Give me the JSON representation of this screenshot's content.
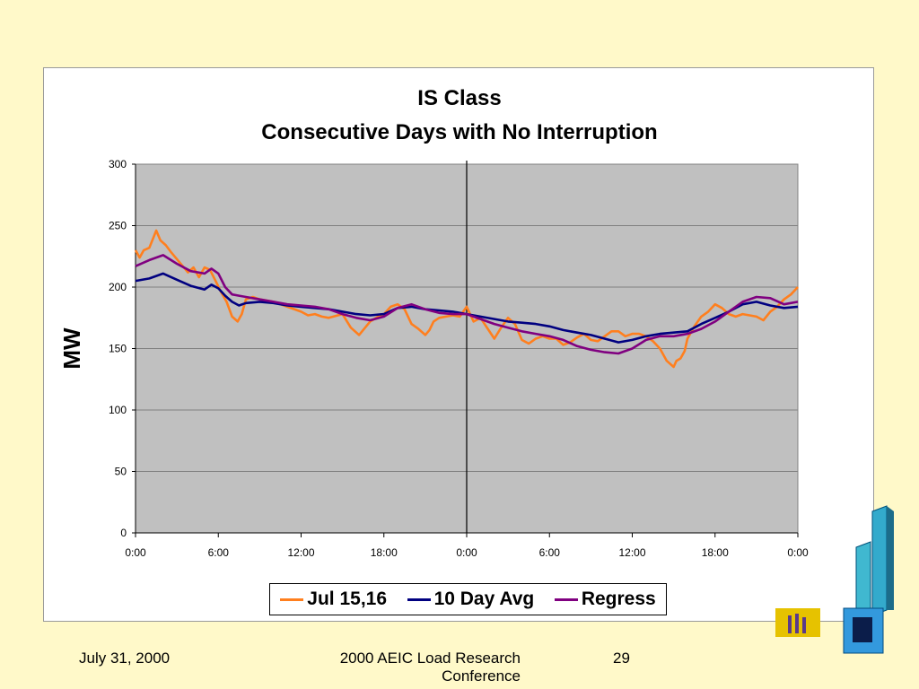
{
  "footer": {
    "date": "July 31, 2000",
    "conference": "2000 AEIC Load Research Conference",
    "page_number": "29"
  },
  "colors": {
    "background": "#FFF9C9",
    "plot_area": "#C0C0C0",
    "jul": "#FF7F1E",
    "avg": "#000080",
    "regress": "#800080"
  },
  "chart_data": {
    "type": "line",
    "title": "IS Class",
    "subtitle": "Consecutive Days with No Interruption",
    "xlabel": "",
    "ylabel": "MW",
    "ylim": [
      0,
      300
    ],
    "yticks": [
      0,
      50,
      100,
      150,
      200,
      250,
      300
    ],
    "xlim": [
      0,
      48
    ],
    "xticks": [
      0,
      6,
      12,
      18,
      24,
      30,
      36,
      42,
      48
    ],
    "xtick_labels": [
      "0:00",
      "6:00",
      "12:00",
      "18:00",
      "0:00",
      "6:00",
      "12:00",
      "18:00",
      "0:00"
    ],
    "x_unit": "hours",
    "grid": "horizontal",
    "vertical_marker": 24,
    "legend": "bottom",
    "series": [
      {
        "name": "Jul 15,16",
        "color": "#FF7F1E",
        "x": [
          0,
          0.3,
          0.6,
          1,
          1.5,
          1.8,
          2.2,
          2.6,
          3.2,
          3.8,
          4.2,
          4.6,
          5,
          5.4,
          5.8,
          6.2,
          6.6,
          7,
          7.4,
          7.7,
          8,
          8.5,
          9,
          10,
          11,
          12,
          12.5,
          13,
          13.5,
          14,
          15,
          15.6,
          16.2,
          17,
          17.6,
          18,
          18.5,
          19,
          19.5,
          20,
          20.5,
          21,
          21.3,
          21.6,
          22,
          22.5,
          23,
          23.5,
          24,
          24.5,
          25,
          26,
          26.5,
          27,
          27.5,
          28,
          28.5,
          29,
          29.5,
          30,
          30.5,
          31,
          31.5,
          32,
          32.5,
          33,
          33.5,
          34,
          34.5,
          35,
          35.5,
          36,
          36.5,
          37,
          37.5,
          38,
          38.5,
          39,
          39.2,
          39.5,
          39.8,
          40,
          40.5,
          41,
          41.5,
          42,
          42.5,
          43,
          43.5,
          44,
          44.5,
          45,
          45.5,
          46,
          46.5,
          47,
          47.5,
          48
        ],
        "values": [
          230,
          224,
          230,
          232,
          246,
          238,
          234,
          228,
          220,
          212,
          216,
          208,
          216,
          214,
          205,
          196,
          188,
          176,
          172,
          178,
          190,
          192,
          190,
          188,
          184,
          180,
          177,
          178,
          176,
          175,
          178,
          167,
          161,
          172,
          176,
          178,
          184,
          186,
          182,
          170,
          166,
          161,
          165,
          172,
          175,
          176,
          177,
          176,
          184,
          172,
          175,
          158,
          167,
          175,
          170,
          157,
          154,
          158,
          160,
          158,
          158,
          153,
          155,
          159,
          162,
          157,
          156,
          160,
          164,
          164,
          160,
          162,
          162,
          160,
          156,
          150,
          140,
          135,
          140,
          142,
          148,
          158,
          168,
          176,
          180,
          186,
          183,
          178,
          176,
          178,
          177,
          176,
          173,
          180,
          184,
          190,
          194,
          200
        ]
      },
      {
        "name": "10 Day Avg",
        "color": "#000080",
        "x": [
          0,
          1,
          2,
          3,
          4,
          5,
          5.5,
          6,
          6.5,
          7,
          7.5,
          8,
          9,
          10,
          11,
          12,
          13,
          14,
          15,
          16,
          17,
          18,
          19,
          20,
          21,
          22,
          23,
          24,
          25,
          26,
          27,
          28,
          29,
          30,
          31,
          32,
          33,
          34,
          35,
          36,
          37,
          38,
          39,
          40,
          41,
          42,
          43,
          44,
          45,
          46,
          47,
          48
        ],
        "values": [
          205,
          207,
          211,
          206,
          201,
          198,
          202,
          199,
          193,
          188,
          185,
          187,
          188,
          187,
          185,
          184,
          183,
          182,
          180,
          178,
          177,
          178,
          183,
          184,
          182,
          181,
          180,
          178,
          176,
          174,
          172,
          171,
          170,
          168,
          165,
          163,
          161,
          158,
          155,
          157,
          160,
          162,
          163,
          164,
          170,
          175,
          180,
          186,
          188,
          185,
          183,
          184
        ]
      },
      {
        "name": "Regress",
        "color": "#800080",
        "x": [
          0,
          1,
          2,
          3,
          4,
          5,
          5.5,
          6,
          6.5,
          7,
          7.5,
          8,
          9,
          10,
          11,
          12,
          13,
          14,
          15,
          16,
          17,
          18,
          19,
          20,
          21,
          22,
          23,
          24,
          25,
          26,
          27,
          28,
          29,
          30,
          31,
          32,
          33,
          34,
          35,
          36,
          37,
          38,
          39,
          40,
          41,
          42,
          43,
          44,
          45,
          46,
          47,
          48
        ],
        "values": [
          217,
          222,
          226,
          219,
          213,
          211,
          215,
          211,
          200,
          194,
          193,
          192,
          190,
          188,
          186,
          185,
          184,
          182,
          178,
          175,
          173,
          176,
          183,
          186,
          182,
          179,
          178,
          178,
          174,
          170,
          167,
          164,
          162,
          160,
          157,
          152,
          149,
          147,
          146,
          150,
          157,
          160,
          160,
          162,
          166,
          172,
          180,
          188,
          192,
          191,
          186,
          188
        ]
      }
    ]
  }
}
